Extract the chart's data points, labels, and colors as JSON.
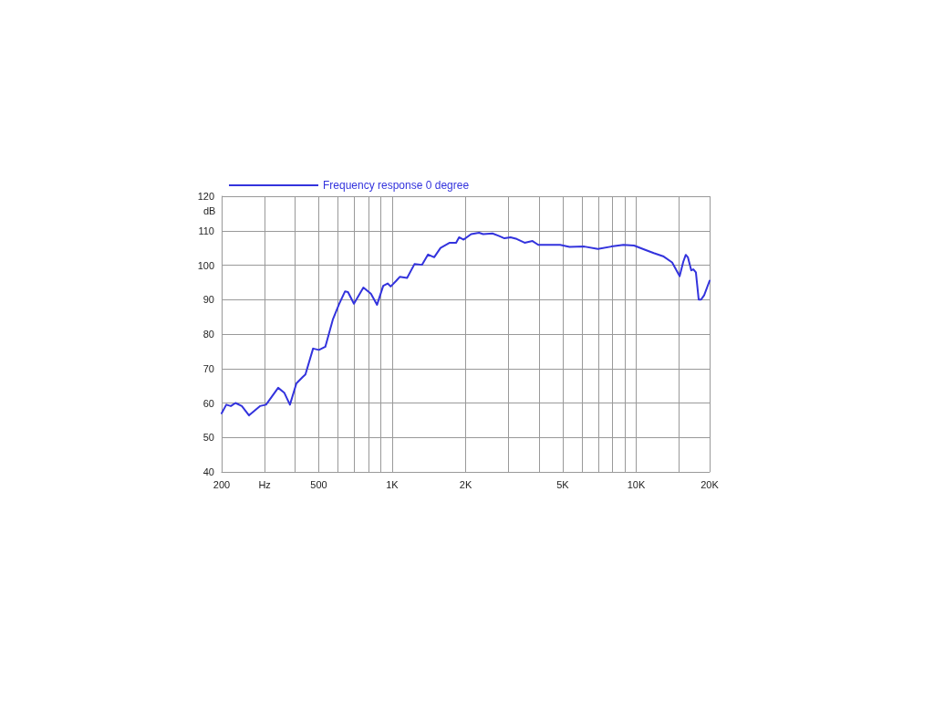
{
  "chart_data": {
    "type": "line",
    "ylabel": "dB",
    "legend": "top left",
    "grid": true,
    "log": "x",
    "marker": "none",
    "line_style": "solid",
    "xlim": [
      200,
      20000
    ],
    "xticks": [
      200,
      {
        "value": 300,
        "label": "Hz"
      },
      {
        "value": 400,
        "label": null
      },
      500,
      {
        "value": 600,
        "label": null
      },
      {
        "value": 700,
        "label": null
      },
      {
        "value": 800,
        "label": null
      },
      {
        "value": 900,
        "label": null
      },
      {
        "value": 1000,
        "label": "1K"
      },
      {
        "value": 2000,
        "label": "2K"
      },
      {
        "value": 3000,
        "label": null
      },
      {
        "value": 4000,
        "label": null
      },
      {
        "value": 5000,
        "label": "5K"
      },
      {
        "value": 6000,
        "label": null
      },
      {
        "value": 7000,
        "label": null
      },
      {
        "value": 8000,
        "label": null
      },
      {
        "value": 9000,
        "label": null
      },
      {
        "value": 10000,
        "label": "10K"
      },
      {
        "value": 15000,
        "label": null
      },
      {
        "value": 20000,
        "label": "20K"
      }
    ],
    "ylim": [
      40,
      120
    ],
    "yticks": [
      40,
      50,
      60,
      70,
      80,
      90,
      100,
      110,
      120
    ],
    "series": [
      {
        "name": "Frequency response 0 degree",
        "color": "#3333dd",
        "x": [
          200,
          209,
          218,
          228,
          242,
          259,
          287,
          304,
          341,
          361,
          381,
          405,
          429,
          441,
          474,
          501,
          532,
          571,
          606,
          641,
          659,
          697,
          762,
          818,
          867,
          919,
          958,
          986,
          1040,
          1074,
          1151,
          1234,
          1326,
          1403,
          1486,
          1578,
          1722,
          1828,
          1880,
          1963,
          2107,
          2270,
          2360,
          2577,
          2732,
          2885,
          3056,
          3240,
          3490,
          3760,
          3970,
          4340,
          4880,
          5330,
          6130,
          6970,
          7910,
          8870,
          9800,
          10830,
          11800,
          12890,
          14040,
          15070,
          15600,
          15970,
          16290,
          16820,
          17160,
          17570,
          18040,
          18450,
          19000,
          20000
        ],
        "values": [
          57,
          59.5,
          59.1,
          60,
          59.1,
          56.4,
          59.1,
          59.5,
          64.4,
          63,
          59.5,
          65.7,
          67.5,
          68.3,
          75.8,
          75.4,
          76.3,
          84.2,
          88.7,
          92.4,
          92.2,
          88.8,
          93.5,
          91.7,
          88.5,
          94,
          94.7,
          93.8,
          95.5,
          96.6,
          96.3,
          100.3,
          100.1,
          103.1,
          102.3,
          105,
          106.5,
          106.5,
          108.1,
          107.4,
          109,
          109.4,
          109,
          109.2,
          108.5,
          107.8,
          108.1,
          107.6,
          106.5,
          107,
          105.9,
          105.9,
          105.9,
          105.3,
          105.4,
          104.7,
          105.4,
          105.9,
          105.7,
          104.5,
          103.5,
          102.6,
          100.8,
          96.8,
          101,
          103,
          102.3,
          98.5,
          98.8,
          97.9,
          90,
          90,
          91.3,
          95.5
        ]
      }
    ]
  }
}
